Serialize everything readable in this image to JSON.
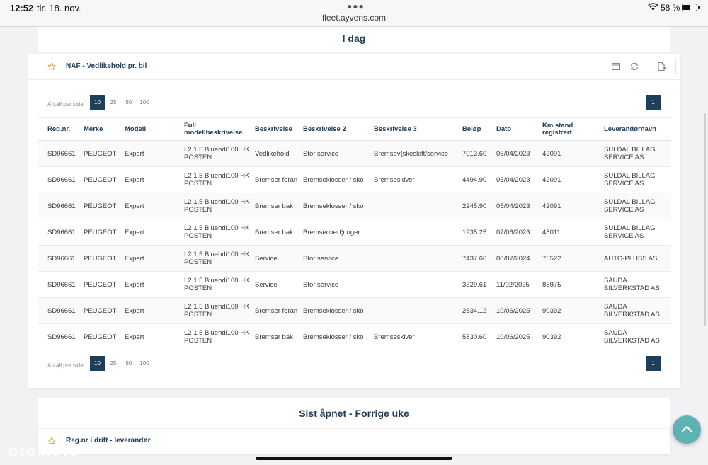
{
  "status": {
    "time": "12:52",
    "date": "tir. 18. nov.",
    "url": "fleet.ayvens.com",
    "battery": "58 %",
    "battery_level": 0.58
  },
  "sections": {
    "today": "I dag",
    "last_opened": "Sist åpnet - Forrige uke"
  },
  "report": {
    "title": "NAF - Vedlikehold pr. bil",
    "per_page_label": "Antall per side:",
    "per_page_options": [
      "10",
      "25",
      "50",
      "100"
    ],
    "page": "1",
    "columns": [
      "Reg.nr.",
      "Merke",
      "Modell",
      "Full modellbeskrivelse",
      "Beskrivelse",
      "Beskrivelse 2",
      "Beskrivelse 3",
      "Beløp",
      "Dato",
      "Km stand registrert",
      "Leverandørnavn"
    ],
    "rows": [
      [
        "SD96661",
        "PEUGEOT",
        "Expert",
        "L2 1.5 Bluehdi100 HK POSTEN",
        "Vedlikehold",
        "Stor service",
        "Bremsev{skeskift/service",
        "7013.60",
        "05/04/2023",
        "42091",
        "SULDAL BILLAG SERVICE AS"
      ],
      [
        "SD96661",
        "PEUGEOT",
        "Expert",
        "L2 1.5 Bluehdi100 HK POSTEN",
        "Bremser foran",
        "Bremseklosser / sko",
        "Bremseskiver",
        "4494.90",
        "05/04/2023",
        "42091",
        "SULDAL BILLAG SERVICE AS"
      ],
      [
        "SD96661",
        "PEUGEOT",
        "Expert",
        "L2 1.5 Bluehdi100 HK POSTEN",
        "Bremser bak",
        "Bremseklosser / sko",
        "",
        "2245.90",
        "05/04/2023",
        "42091",
        "SULDAL BILLAG SERVICE AS"
      ],
      [
        "SD96661",
        "PEUGEOT",
        "Expert",
        "L2 1.5 Bluehdi100 HK POSTEN",
        "Bremser bak",
        "Bremseoverf¦ringer",
        "",
        "1935.25",
        "07/06/2023",
        "48011",
        "SULDAL BILLAG SERVICE AS"
      ],
      [
        "SD96661",
        "PEUGEOT",
        "Expert",
        "L2 1.5 Bluehdi100 HK POSTEN",
        "Service",
        "Stor service",
        "",
        "7437.60",
        "08/07/2024",
        "75522",
        "AUTO-PLUSS AS"
      ],
      [
        "SD96661",
        "PEUGEOT",
        "Expert",
        "L2 1.5 Bluehdi100 HK POSTEN",
        "Service",
        "Stor service",
        "",
        "3329.61",
        "11/02/2025",
        "85975",
        "SAUDA BILVERKSTAD AS"
      ],
      [
        "SD96661",
        "PEUGEOT",
        "Expert",
        "L2 1.5 Bluehdi100 HK POSTEN",
        "Bremser foran",
        "Bremseklosser / sko",
        "",
        "2834.12",
        "10/06/2025",
        "90392",
        "SAUDA BILVERKSTAD AS"
      ],
      [
        "SD96661",
        "PEUGEOT",
        "Expert",
        "L2 1.5 Bluehdi100 HK POSTEN",
        "Bremser bak",
        "Bremseklosser / sko",
        "Bremseskiver",
        "5830.60",
        "10/06/2025",
        "90392",
        "SAUDA BILVERKSTAD AS"
      ]
    ]
  },
  "report2": {
    "title": "Reg.nr i drift - leverandør"
  },
  "watermark": "otomoto",
  "icons": {
    "favorite": "star-outline-icon",
    "window": "window-icon",
    "refresh": "refresh-icon",
    "export": "export-document-icon",
    "scroll_top": "chevron-up-icon"
  },
  "colors": {
    "accent": "#1e3f5a",
    "star": "#e0a030",
    "fab": "#5fb2b2"
  }
}
